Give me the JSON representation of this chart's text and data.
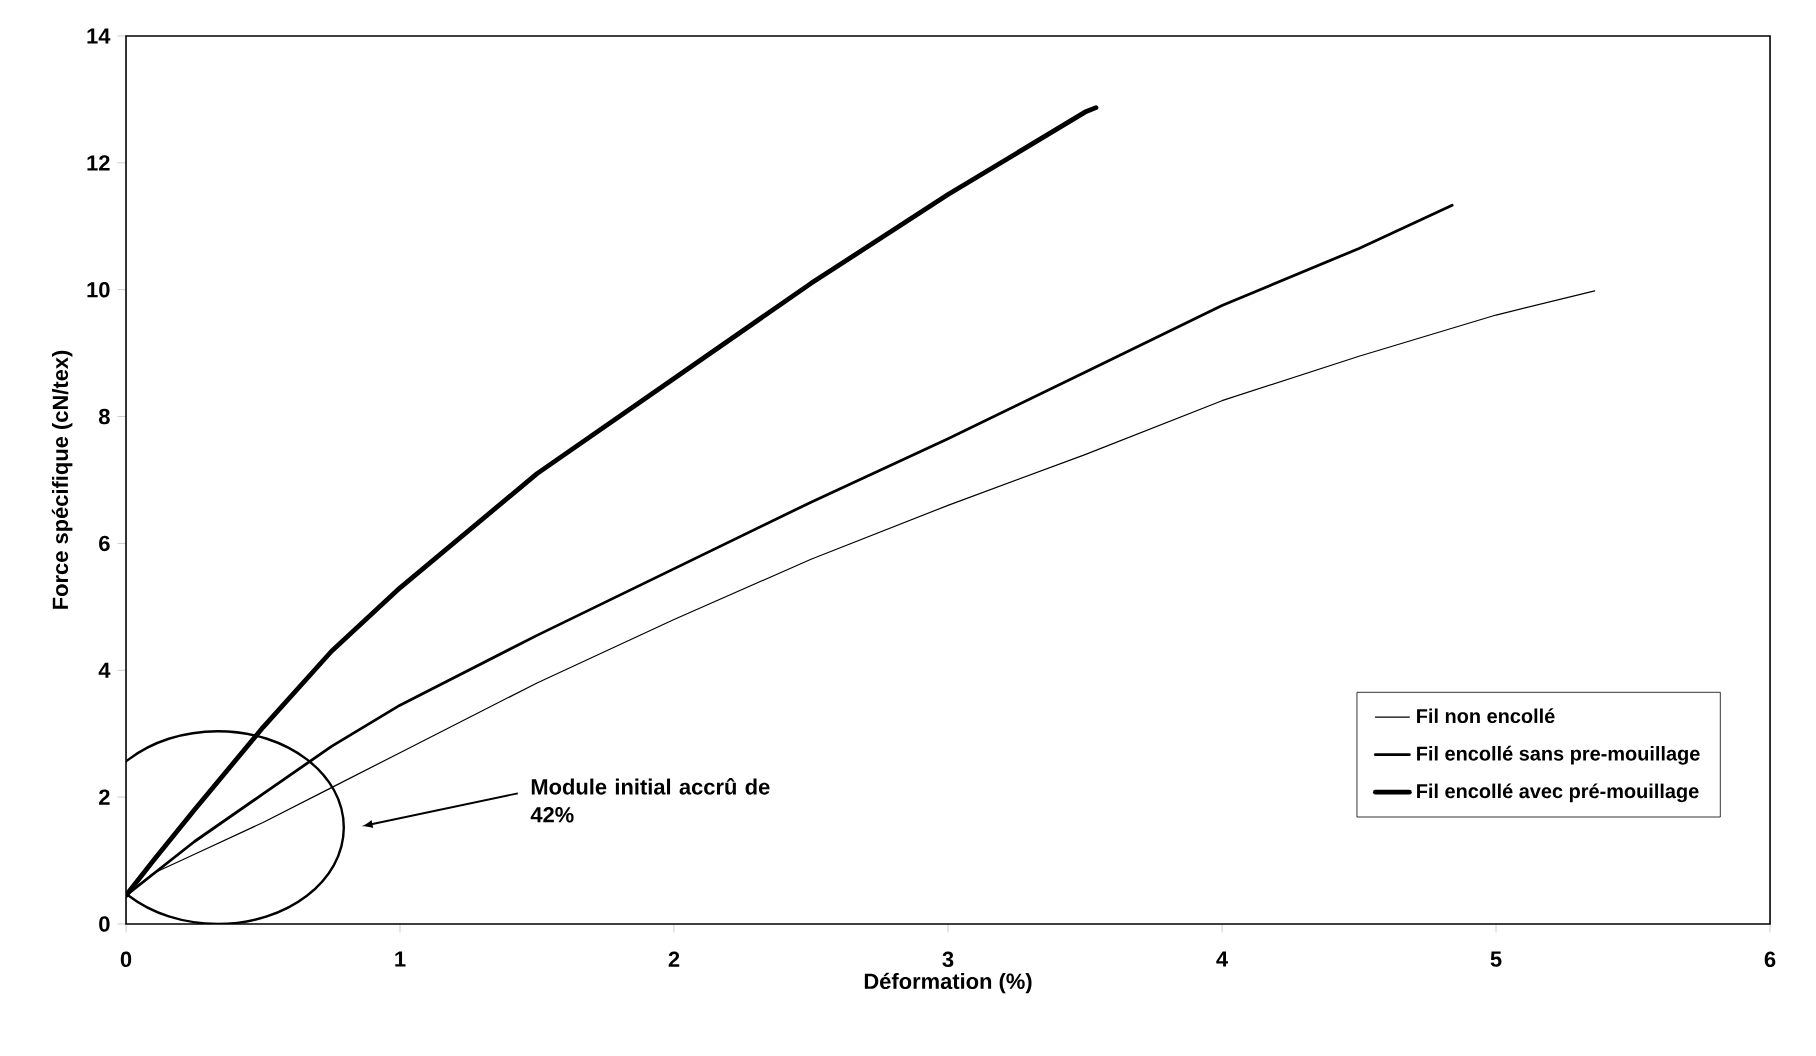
{
  "chart_data": {
    "type": "line",
    "xlabel": "Déformation (%)",
    "ylabel": "Force spécifique (cN/tex)",
    "xlim": [
      0,
      6
    ],
    "xticks": [
      0,
      1,
      2,
      3,
      4,
      5,
      6
    ],
    "ylim": [
      0,
      14
    ],
    "yticks": [
      0,
      2,
      4,
      6,
      8,
      10,
      12,
      14
    ],
    "grid": false,
    "legend": "bottom right",
    "marker": "none",
    "line_style": "solid",
    "annotations": [
      "Module initial accrû de 42%"
    ],
    "series": [
      {
        "name": "Fil non encollé",
        "color": "#000000",
        "x": [
          0,
          0.1,
          0.25,
          0.5,
          0.75,
          1,
          1.5,
          2,
          2.5,
          3,
          3.5,
          4,
          4.5,
          5,
          5.36
        ],
        "values": [
          0.45,
          0.8,
          1.1,
          1.6,
          2.15,
          2.7,
          3.8,
          4.8,
          5.75,
          6.6,
          7.4,
          8.25,
          8.95,
          9.6,
          9.98
        ]
      },
      {
        "name": "Fil encollé sans pre-mouillage",
        "color": "#000000",
        "x": [
          0,
          0.25,
          0.5,
          0.75,
          1,
          1.5,
          2,
          2.5,
          3,
          3.5,
          4,
          4.5,
          4.84
        ],
        "values": [
          0.45,
          1.3,
          2.05,
          2.8,
          3.45,
          4.55,
          5.6,
          6.65,
          7.65,
          8.7,
          9.75,
          10.65,
          11.33
        ]
      },
      {
        "name": "Fil encollé avec pré-mouillage",
        "color": "#000000",
        "x": [
          0,
          0.1,
          0.25,
          0.5,
          0.75,
          1,
          1.5,
          2,
          2.5,
          3,
          3.5,
          3.54
        ],
        "values": [
          0.45,
          1.0,
          1.8,
          3.1,
          4.3,
          5.3,
          7.1,
          8.6,
          10.1,
          11.5,
          12.8,
          12.87
        ]
      }
    ]
  }
}
